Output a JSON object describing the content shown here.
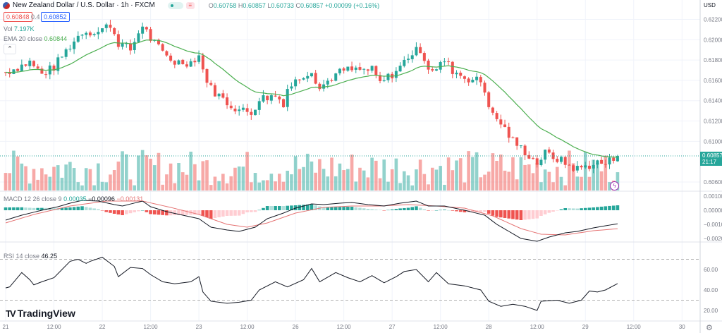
{
  "header": {
    "symbol_title": "New Zealand Dollar / U.S. Dollar · 1h · FXCM",
    "ohlc": {
      "o_label": "O",
      "o": "0.60758",
      "h_label": "H",
      "h": "0.60857",
      "l_label": "L",
      "l": "0.60733",
      "c_label": "C",
      "c": "0.60857",
      "change": "+0.00099 (+0.16%)"
    },
    "sell_price": "0.60848",
    "spread": "0.4",
    "buy_price": "0.60852",
    "volume_label": "Vol",
    "volume_value": "7.197K",
    "ema_label": "EMA 20 close",
    "ema_value": "0.60844",
    "collapse_icon": "chevron-up-icon"
  },
  "currency": "USD",
  "last_price": {
    "price": "0.60857",
    "countdown": "21:17"
  },
  "colors": {
    "up": "#26a69a",
    "down": "#ef5350",
    "ema": "#4caf50",
    "macd": "#131722",
    "signal": "#e57373",
    "rsi": "#131722"
  },
  "macd_legend": {
    "label": "MACD 12 26 close 9",
    "hist": "0.00035",
    "macd": "−0.00096",
    "signal": "−0.00131"
  },
  "rsi_legend": {
    "label": "RSI 14 close",
    "value": "46.25"
  },
  "brand": "TradingView",
  "chart_data": {
    "type": "candlestick",
    "title": "New Zealand Dollar / U.S. Dollar · 1h · FXCM",
    "x_unit": "hours since 21 00:00 (weekend excluded)",
    "price_ticks": [
      "0.62200",
      "0.62000",
      "0.61800",
      "0.61600",
      "0.61400",
      "0.61200",
      "0.61000",
      "0.60600"
    ],
    "price_tick_values": [
      0.622,
      0.62,
      0.618,
      0.616,
      0.614,
      0.612,
      0.61,
      0.606
    ],
    "price_range": [
      0.6042,
      0.624
    ],
    "close_anchors": [
      [
        0,
        0.6168
      ],
      [
        6,
        0.6178
      ],
      [
        9,
        0.6166
      ],
      [
        12,
        0.6173
      ],
      [
        14,
        0.6184
      ],
      [
        16,
        0.6194
      ],
      [
        19,
        0.6208
      ],
      [
        23,
        0.6208
      ],
      [
        26,
        0.6215
      ],
      [
        28,
        0.6197
      ],
      [
        31,
        0.619
      ],
      [
        34,
        0.6215
      ],
      [
        36,
        0.6201
      ],
      [
        39,
        0.6187
      ],
      [
        42,
        0.6178
      ],
      [
        46,
        0.6178
      ],
      [
        48,
        0.6185
      ],
      [
        49,
        0.617
      ],
      [
        51,
        0.6152
      ],
      [
        55,
        0.6138
      ],
      [
        58,
        0.6131
      ],
      [
        61,
        0.6128
      ],
      [
        63,
        0.6142
      ],
      [
        67,
        0.6145
      ],
      [
        69,
        0.6138
      ],
      [
        70,
        0.6152
      ],
      [
        74,
        0.6166
      ],
      [
        76,
        0.617
      ],
      [
        78,
        0.6152
      ],
      [
        81,
        0.6163
      ],
      [
        84,
        0.617
      ],
      [
        91,
        0.617
      ],
      [
        93,
        0.6157
      ],
      [
        96,
        0.6166
      ],
      [
        98,
        0.6173
      ],
      [
        100,
        0.6184
      ],
      [
        103,
        0.6191
      ],
      [
        105,
        0.6173
      ],
      [
        107,
        0.617
      ],
      [
        109,
        0.618
      ],
      [
        111,
        0.617
      ],
      [
        114,
        0.6163
      ],
      [
        118,
        0.6159
      ],
      [
        119,
        0.6149
      ],
      [
        121,
        0.6125
      ],
      [
        123,
        0.6118
      ],
      [
        126,
        0.61
      ],
      [
        129,
        0.609
      ],
      [
        132,
        0.6079
      ],
      [
        134,
        0.6088
      ],
      [
        137,
        0.6083
      ],
      [
        140,
        0.6076
      ],
      [
        142,
        0.6073
      ],
      [
        147,
        0.6079
      ],
      [
        149,
        0.6078
      ],
      [
        152,
        0.60857
      ]
    ],
    "ema_period": 20,
    "last_volume_k": 7.197,
    "time_ticks": [
      [
        "21",
        0
      ],
      [
        "12:00",
        12
      ],
      [
        "22",
        24
      ],
      [
        "12:00",
        36
      ],
      [
        "23",
        48
      ],
      [
        "12:00",
        60
      ],
      [
        "26",
        72
      ],
      [
        "12:00",
        84
      ],
      [
        "27",
        96
      ],
      [
        "12:00",
        108
      ],
      [
        "28",
        120
      ],
      [
        "12:00",
        132
      ],
      [
        "29",
        144
      ],
      [
        "12:00",
        156
      ],
      [
        "30",
        168
      ]
    ],
    "macd": {
      "ticks": [
        "0.00100",
        "0.00000",
        "−0.00100",
        "−0.00200"
      ],
      "tick_values": [
        0.001,
        0,
        -0.001,
        -0.002
      ],
      "macd_line": [
        [
          0,
          -0.0007
        ],
        [
          4,
          -0.00035
        ],
        [
          9,
          0
        ],
        [
          13,
          0.00025
        ],
        [
          16,
          0.0005
        ],
        [
          19,
          0.0007
        ],
        [
          23,
          0.00065
        ],
        [
          27,
          0.0004
        ],
        [
          29,
          0.0003
        ],
        [
          34,
          0.00065
        ],
        [
          36,
          0.00025
        ],
        [
          40,
          -0.0001
        ],
        [
          44,
          -0.00035
        ],
        [
          48,
          -0.0006
        ],
        [
          51,
          -0.0012
        ],
        [
          55,
          -0.0014
        ],
        [
          58,
          -0.0015
        ],
        [
          62,
          -0.0012
        ],
        [
          65,
          -0.0006
        ],
        [
          69,
          -0.0002
        ],
        [
          72,
          0.00015
        ],
        [
          76,
          0.00045
        ],
        [
          79,
          0.0004
        ],
        [
          83,
          0.0005
        ],
        [
          86,
          0.00055
        ],
        [
          90,
          0.0004
        ],
        [
          94,
          0.0003
        ],
        [
          98,
          0.0005
        ],
        [
          102,
          0.00065
        ],
        [
          105,
          0.0003
        ],
        [
          109,
          0.0003
        ],
        [
          114,
          0
        ],
        [
          119,
          -0.00035
        ],
        [
          122,
          -0.001
        ],
        [
          125,
          -0.0015
        ],
        [
          128,
          -0.002
        ],
        [
          132,
          -0.0022
        ],
        [
          135,
          -0.0019
        ],
        [
          139,
          -0.0016
        ],
        [
          142,
          -0.0015
        ],
        [
          146,
          -0.00125
        ],
        [
          149,
          -0.0011
        ],
        [
          152,
          -0.00096
        ]
      ],
      "signal_line": [
        [
          0,
          -0.0009
        ],
        [
          7,
          -0.0003
        ],
        [
          16,
          0.0003
        ],
        [
          25,
          0.00065
        ],
        [
          34,
          0.00065
        ],
        [
          41,
          0.0002
        ],
        [
          48,
          -0.0003
        ],
        [
          55,
          -0.001
        ],
        [
          60,
          -0.0012
        ],
        [
          65,
          -0.0009
        ],
        [
          72,
          -0.0002
        ],
        [
          79,
          0.0002
        ],
        [
          86,
          0.0003
        ],
        [
          93,
          0.0003
        ],
        [
          100,
          0.0004
        ],
        [
          107,
          0.0003
        ],
        [
          114,
          0.00015
        ],
        [
          121,
          -0.0004
        ],
        [
          128,
          -0.0013
        ],
        [
          133,
          -0.0017
        ],
        [
          139,
          -0.00175
        ],
        [
          146,
          -0.00145
        ],
        [
          152,
          -0.00131
        ]
      ]
    },
    "rsi": {
      "ticks": [
        "60.00",
        "40.00",
        "20.00"
      ],
      "tick_values": [
        60,
        40,
        20
      ],
      "bands": [
        70,
        30
      ],
      "values": [
        [
          0,
          42
        ],
        [
          1,
          43
        ],
        [
          4,
          57
        ],
        [
          6,
          50
        ],
        [
          7,
          45
        ],
        [
          9,
          48
        ],
        [
          12,
          52
        ],
        [
          14,
          60
        ],
        [
          16,
          68
        ],
        [
          18,
          70
        ],
        [
          20,
          66
        ],
        [
          21,
          68
        ],
        [
          24,
          72
        ],
        [
          27,
          63
        ],
        [
          28,
          53
        ],
        [
          31,
          62
        ],
        [
          34,
          61
        ],
        [
          36,
          55
        ],
        [
          39,
          48
        ],
        [
          42,
          46
        ],
        [
          46,
          48
        ],
        [
          48,
          53
        ],
        [
          49,
          38
        ],
        [
          51,
          29
        ],
        [
          55,
          27
        ],
        [
          58,
          28
        ],
        [
          61,
          30
        ],
        [
          63,
          40
        ],
        [
          67,
          48
        ],
        [
          70,
          43
        ],
        [
          74,
          50
        ],
        [
          76,
          61
        ],
        [
          78,
          48
        ],
        [
          82,
          57
        ],
        [
          85,
          52
        ],
        [
          88,
          48
        ],
        [
          91,
          54
        ],
        [
          94,
          47
        ],
        [
          97,
          53
        ],
        [
          99,
          58
        ],
        [
          102,
          60
        ],
        [
          105,
          48
        ],
        [
          107,
          57
        ],
        [
          110,
          46
        ],
        [
          114,
          44
        ],
        [
          118,
          40
        ],
        [
          120,
          29
        ],
        [
          123,
          24
        ],
        [
          126,
          26
        ],
        [
          129,
          24
        ],
        [
          132,
          20
        ],
        [
          133,
          29
        ],
        [
          137,
          30
        ],
        [
          140,
          27
        ],
        [
          143,
          30
        ],
        [
          145,
          39
        ],
        [
          147,
          38
        ],
        [
          149,
          40
        ],
        [
          152,
          46.25
        ]
      ]
    }
  }
}
